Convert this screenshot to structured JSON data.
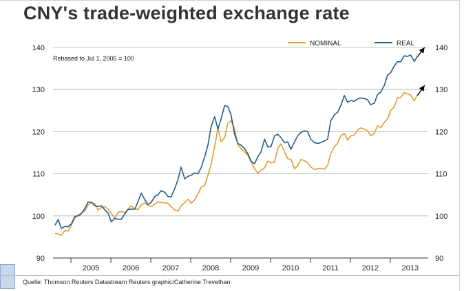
{
  "title": "CNY's trade-weighted exchange rate",
  "source": "Quelle: Thomson Reuters Datastream Reuters graphic/Catherine Trevethan",
  "colors": {
    "nominal": "#e39a2e",
    "real": "#245b8c",
    "grid": "#b0b0b0",
    "axis": "#333333",
    "arrow": "#000000"
  },
  "chart_data": {
    "type": "line",
    "subtitle": "Rebased to Jul 1, 2005 = 100",
    "ylim": [
      90,
      140
    ],
    "yticks": [
      90,
      100,
      110,
      120,
      130,
      140
    ],
    "ytick_labels_left": [
      "90",
      "100",
      "110",
      "120",
      "130",
      "140"
    ],
    "ytick_labels_right": [
      "90",
      "100",
      "110",
      "120",
      "130",
      "140"
    ],
    "xlim": [
      2004.55,
      2013.95
    ],
    "xtick_years": [
      "2005",
      "2006",
      "2007",
      "2008",
      "2009",
      "2010",
      "2011",
      "2012",
      "2013"
    ],
    "grid": true,
    "legend_position": "top-right",
    "series": [
      {
        "name": "NOMINAL",
        "color_key": "nominal",
        "points": [
          [
            2004.6,
            95.8
          ],
          [
            2004.68,
            95.7
          ],
          [
            2004.76,
            95.4
          ],
          [
            2004.85,
            96.5
          ],
          [
            2004.93,
            96.4
          ],
          [
            2005.01,
            97.8
          ],
          [
            2005.1,
            99.6
          ],
          [
            2005.18,
            100.2
          ],
          [
            2005.26,
            100.6
          ],
          [
            2005.35,
            101.2
          ],
          [
            2005.43,
            102.6
          ],
          [
            2005.51,
            103.2
          ],
          [
            2005.6,
            102.8
          ],
          [
            2005.68,
            101.4
          ],
          [
            2005.76,
            102.0
          ],
          [
            2005.85,
            102.2
          ],
          [
            2005.93,
            101.6
          ],
          [
            2006.01,
            100.6
          ],
          [
            2006.1,
            99.4
          ],
          [
            2006.18,
            100.9
          ],
          [
            2006.26,
            101.0
          ],
          [
            2006.35,
            100.8
          ],
          [
            2006.43,
            101.6
          ],
          [
            2006.51,
            102.4
          ],
          [
            2006.6,
            101.7
          ],
          [
            2006.68,
            101.5
          ],
          [
            2006.76,
            102.6
          ],
          [
            2006.85,
            103.1
          ],
          [
            2006.93,
            102.5
          ],
          [
            2007.01,
            102.2
          ],
          [
            2007.1,
            102.8
          ],
          [
            2007.18,
            103.3
          ],
          [
            2007.26,
            103.2
          ],
          [
            2007.35,
            103.1
          ],
          [
            2007.43,
            103.0
          ],
          [
            2007.51,
            102.2
          ],
          [
            2007.6,
            101.4
          ],
          [
            2007.68,
            101.1
          ],
          [
            2007.76,
            102.4
          ],
          [
            2007.85,
            103.2
          ],
          [
            2007.93,
            104.0
          ],
          [
            2008.01,
            103.0
          ],
          [
            2008.1,
            103.8
          ],
          [
            2008.18,
            105.2
          ],
          [
            2008.26,
            106.8
          ],
          [
            2008.35,
            107.2
          ],
          [
            2008.43,
            109.6
          ],
          [
            2008.51,
            112.2
          ],
          [
            2008.6,
            116.4
          ],
          [
            2008.68,
            120.8
          ],
          [
            2008.76,
            117.6
          ],
          [
            2008.85,
            118.6
          ],
          [
            2008.93,
            122.0
          ],
          [
            2009.01,
            122.6
          ],
          [
            2009.1,
            120.6
          ],
          [
            2009.18,
            117.0
          ],
          [
            2009.26,
            115.9
          ],
          [
            2009.35,
            115.2
          ],
          [
            2009.43,
            114.4
          ],
          [
            2009.51,
            112.9
          ],
          [
            2009.6,
            111.2
          ],
          [
            2009.68,
            110.2
          ],
          [
            2009.76,
            110.8
          ],
          [
            2009.85,
            111.4
          ],
          [
            2009.93,
            113.0
          ],
          [
            2010.01,
            112.6
          ],
          [
            2010.1,
            112.8
          ],
          [
            2010.18,
            116.0
          ],
          [
            2010.26,
            117.1
          ],
          [
            2010.35,
            115.2
          ],
          [
            2010.43,
            113.6
          ],
          [
            2010.51,
            113.4
          ],
          [
            2010.6,
            111.2
          ],
          [
            2010.68,
            111.9
          ],
          [
            2010.76,
            113.4
          ],
          [
            2010.85,
            113.1
          ],
          [
            2010.93,
            112.6
          ],
          [
            2011.01,
            111.6
          ],
          [
            2011.1,
            111.0
          ],
          [
            2011.18,
            111.2
          ],
          [
            2011.26,
            111.3
          ],
          [
            2011.35,
            111.1
          ],
          [
            2011.43,
            112.0
          ],
          [
            2011.51,
            114.8
          ],
          [
            2011.6,
            116.4
          ],
          [
            2011.68,
            117.3
          ],
          [
            2011.76,
            119.0
          ],
          [
            2011.85,
            119.6
          ],
          [
            2011.93,
            118.0
          ],
          [
            2012.01,
            119.0
          ],
          [
            2012.1,
            119.2
          ],
          [
            2012.18,
            120.4
          ],
          [
            2012.26,
            120.9
          ],
          [
            2012.35,
            120.6
          ],
          [
            2012.43,
            120.2
          ],
          [
            2012.51,
            119.0
          ],
          [
            2012.6,
            119.6
          ],
          [
            2012.68,
            121.4
          ],
          [
            2012.76,
            121.0
          ],
          [
            2012.85,
            122.2
          ],
          [
            2012.93,
            123.0
          ],
          [
            2013.01,
            125.0
          ],
          [
            2013.1,
            125.9
          ],
          [
            2013.18,
            128.0
          ],
          [
            2013.26,
            128.1
          ],
          [
            2013.35,
            129.3
          ],
          [
            2013.43,
            129.0
          ],
          [
            2013.51,
            128.7
          ],
          [
            2013.6,
            127.3
          ],
          [
            2013.68,
            128.8
          ]
        ]
      },
      {
        "name": "REAL",
        "color_key": "real",
        "points": [
          [
            2004.6,
            97.8
          ],
          [
            2004.68,
            99.1
          ],
          [
            2004.76,
            97.0
          ],
          [
            2004.85,
            97.5
          ],
          [
            2004.93,
            97.4
          ],
          [
            2005.01,
            98.1
          ],
          [
            2005.1,
            99.9
          ],
          [
            2005.18,
            100.0
          ],
          [
            2005.26,
            100.5
          ],
          [
            2005.35,
            101.8
          ],
          [
            2005.43,
            103.3
          ],
          [
            2005.51,
            103.2
          ],
          [
            2005.6,
            102.4
          ],
          [
            2005.68,
            102.2
          ],
          [
            2005.76,
            102.4
          ],
          [
            2005.85,
            101.4
          ],
          [
            2005.93,
            100.7
          ],
          [
            2006.01,
            98.6
          ],
          [
            2006.1,
            99.4
          ],
          [
            2006.18,
            99.2
          ],
          [
            2006.26,
            99.2
          ],
          [
            2006.35,
            100.5
          ],
          [
            2006.43,
            101.5
          ],
          [
            2006.51,
            101.6
          ],
          [
            2006.6,
            101.6
          ],
          [
            2006.68,
            103.4
          ],
          [
            2006.76,
            105.4
          ],
          [
            2006.85,
            103.8
          ],
          [
            2006.93,
            102.7
          ],
          [
            2007.01,
            103.2
          ],
          [
            2007.1,
            104.6
          ],
          [
            2007.18,
            105.0
          ],
          [
            2007.26,
            106.0
          ],
          [
            2007.35,
            105.6
          ],
          [
            2007.43,
            104.6
          ],
          [
            2007.51,
            104.5
          ],
          [
            2007.6,
            106.5
          ],
          [
            2007.68,
            108.6
          ],
          [
            2007.76,
            111.6
          ],
          [
            2007.85,
            108.8
          ],
          [
            2007.93,
            109.4
          ],
          [
            2008.01,
            109.6
          ],
          [
            2008.1,
            110.2
          ],
          [
            2008.18,
            110.0
          ],
          [
            2008.26,
            111.4
          ],
          [
            2008.35,
            114.0
          ],
          [
            2008.43,
            116.8
          ],
          [
            2008.51,
            121.2
          ],
          [
            2008.6,
            123.6
          ],
          [
            2008.68,
            120.6
          ],
          [
            2008.76,
            123.0
          ],
          [
            2008.85,
            126.2
          ],
          [
            2008.93,
            126.0
          ],
          [
            2009.01,
            124.0
          ],
          [
            2009.1,
            119.4
          ],
          [
            2009.18,
            117.2
          ],
          [
            2009.26,
            116.8
          ],
          [
            2009.35,
            116.0
          ],
          [
            2009.43,
            114.8
          ],
          [
            2009.51,
            113.0
          ],
          [
            2009.6,
            112.4
          ],
          [
            2009.68,
            114.0
          ],
          [
            2009.76,
            115.2
          ],
          [
            2009.85,
            118.2
          ],
          [
            2009.93,
            116.4
          ],
          [
            2010.01,
            116.4
          ],
          [
            2010.1,
            119.0
          ],
          [
            2010.18,
            119.4
          ],
          [
            2010.26,
            118.6
          ],
          [
            2010.35,
            117.4
          ],
          [
            2010.43,
            117.6
          ],
          [
            2010.51,
            115.8
          ],
          [
            2010.6,
            117.6
          ],
          [
            2010.68,
            119.0
          ],
          [
            2010.76,
            119.8
          ],
          [
            2010.85,
            120.2
          ],
          [
            2010.93,
            120.0
          ],
          [
            2011.01,
            118.2
          ],
          [
            2011.1,
            117.4
          ],
          [
            2011.18,
            117.2
          ],
          [
            2011.26,
            117.4
          ],
          [
            2011.35,
            117.8
          ],
          [
            2011.43,
            118.2
          ],
          [
            2011.51,
            122.6
          ],
          [
            2011.6,
            124.0
          ],
          [
            2011.68,
            124.6
          ],
          [
            2011.76,
            126.2
          ],
          [
            2011.85,
            128.6
          ],
          [
            2011.93,
            127.0
          ],
          [
            2012.01,
            127.4
          ],
          [
            2012.1,
            127.2
          ],
          [
            2012.18,
            127.8
          ],
          [
            2012.26,
            128.0
          ],
          [
            2012.35,
            127.9
          ],
          [
            2012.43,
            127.6
          ],
          [
            2012.51,
            126.4
          ],
          [
            2012.6,
            126.8
          ],
          [
            2012.68,
            128.8
          ],
          [
            2012.76,
            129.4
          ],
          [
            2012.85,
            131.0
          ],
          [
            2012.93,
            133.4
          ],
          [
            2013.01,
            134.0
          ],
          [
            2013.1,
            135.6
          ],
          [
            2013.18,
            136.6
          ],
          [
            2013.26,
            136.6
          ],
          [
            2013.35,
            138.0
          ],
          [
            2013.43,
            137.9
          ],
          [
            2013.51,
            138.2
          ],
          [
            2013.6,
            136.7
          ],
          [
            2013.68,
            137.9
          ]
        ]
      }
    ],
    "annotations": [
      {
        "type": "arrow",
        "from": [
          2013.68,
          128.6
        ],
        "to": [
          2013.86,
          131.0
        ],
        "color_key": "arrow"
      },
      {
        "type": "arrow",
        "from": [
          2013.68,
          137.8
        ],
        "to": [
          2013.86,
          140.0
        ],
        "color_key": "arrow"
      }
    ]
  }
}
